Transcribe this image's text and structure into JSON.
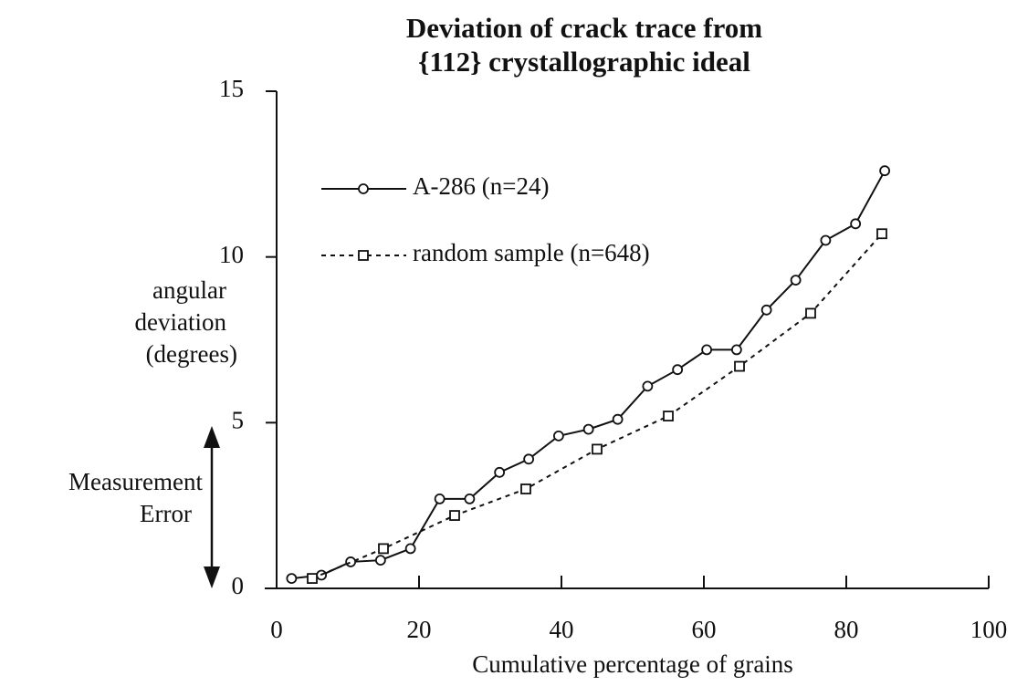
{
  "chart_data": {
    "type": "line",
    "title": [
      "Deviation of crack trace from",
      "{112} crystallographic ideal"
    ],
    "xlabel": "Cumulative percentage of grains",
    "ylabel": [
      "angular",
      "deviation",
      "(degrees)"
    ],
    "xlim": [
      0,
      100
    ],
    "xticks": [
      0,
      20,
      40,
      60,
      80,
      100
    ],
    "ylim": [
      0,
      15
    ],
    "yticks": [
      0,
      5,
      10,
      15
    ],
    "legend": "upper left",
    "annotation": {
      "text": [
        "Measurement",
        "Error"
      ],
      "from": 0,
      "to": 4.9
    },
    "series": [
      {
        "name": "A-286 (n=24)",
        "color": "#111111",
        "style": "solid",
        "marker": "circle",
        "x": [
          2.1,
          6.3,
          10.4,
          14.6,
          18.8,
          22.9,
          27.1,
          31.3,
          35.4,
          39.6,
          43.8,
          47.9,
          52.1,
          56.3,
          60.4,
          64.6,
          68.8,
          72.9,
          77.1,
          81.3,
          85.4
        ],
        "values": [
          0.3,
          0.4,
          0.8,
          0.85,
          1.2,
          2.7,
          2.7,
          3.5,
          3.9,
          4.6,
          4.8,
          5.1,
          6.1,
          6.6,
          7.2,
          7.2,
          8.4,
          9.3,
          10.5,
          11.0,
          12.6
        ]
      },
      {
        "name": "random sample (n=648)",
        "color": "#111111",
        "style": "dotted",
        "marker": "square",
        "x": [
          5,
          15,
          25,
          35,
          45,
          55,
          65,
          75,
          85
        ],
        "values": [
          0.3,
          1.2,
          2.2,
          3.0,
          4.2,
          5.2,
          6.7,
          8.3,
          10.7
        ]
      }
    ]
  }
}
